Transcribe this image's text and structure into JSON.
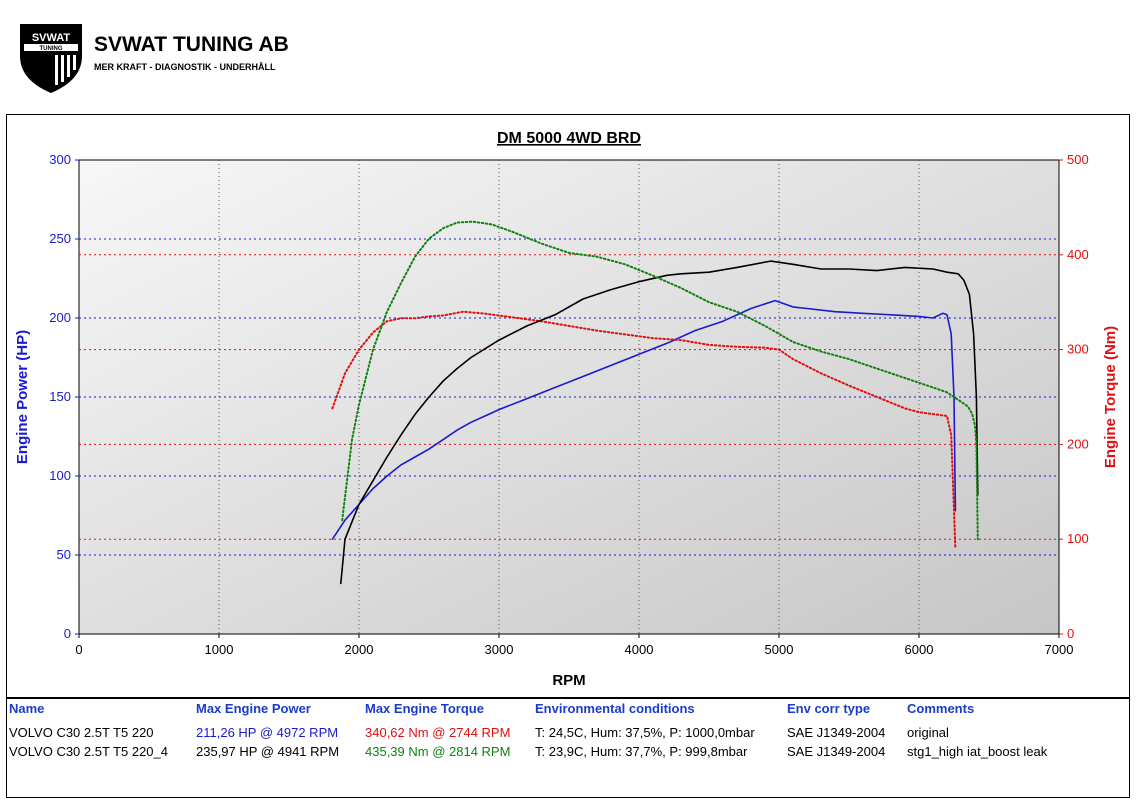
{
  "brand": {
    "name": "SVWAT TUNING AB",
    "tagline": "MER KRAFT - DIAGNOSTIK - UNDERHÅLL",
    "emblem_text": "SVWAT",
    "emblem_subtext": "TUNING"
  },
  "colors": {
    "power_1": "#1a1ad0",
    "torque_1": "#e01010",
    "power_2": "#000000",
    "torque_2": "#108010",
    "axis_left": "#1a1ad0",
    "axis_right": "#e01010"
  },
  "chart_data": {
    "type": "line",
    "title": "DM 5000 4WD BRD",
    "xlabel": "RPM",
    "ylabel": "Engine Power (HP)",
    "y2label": "Engine Torque (Nm)",
    "xlim": [
      0,
      7000
    ],
    "ylim": [
      0,
      300
    ],
    "y2lim": [
      0,
      500
    ],
    "xticks": [
      0,
      1000,
      2000,
      3000,
      4000,
      5000,
      6000,
      7000
    ],
    "yticks": [
      0,
      50,
      100,
      150,
      200,
      250,
      300
    ],
    "y2ticks": [
      0,
      100,
      200,
      300,
      400,
      500
    ],
    "grid": true,
    "series": [
      {
        "name": "VOLVO C30 2.5T T5 220",
        "quantity": "power",
        "axis": "left",
        "x": [
          1810,
          1900,
          2000,
          2100,
          2200,
          2300,
          2400,
          2500,
          2600,
          2700,
          2800,
          2900,
          3000,
          3200,
          3400,
          3600,
          3800,
          4000,
          4200,
          4400,
          4600,
          4800,
          4972,
          5100,
          5200,
          5400,
          5600,
          5800,
          6000,
          6100,
          6170,
          6200,
          6230,
          6250,
          6260
        ],
        "y": [
          60,
          72,
          82,
          92,
          100,
          107,
          112,
          117,
          123,
          129,
          134,
          138,
          142,
          149,
          156,
          163,
          170,
          177,
          184,
          192,
          198,
          206,
          211,
          207,
          206,
          204,
          203,
          202,
          201,
          200,
          203,
          202,
          190,
          150,
          78
        ]
      },
      {
        "name": "VOLVO C30 2.5T T5 220",
        "quantity": "torque",
        "axis": "right",
        "x": [
          1810,
          1900,
          2000,
          2100,
          2200,
          2300,
          2400,
          2500,
          2600,
          2744,
          2900,
          3100,
          3300,
          3500,
          3700,
          3900,
          4100,
          4300,
          4500,
          4700,
          4900,
          5000,
          5100,
          5300,
          5500,
          5700,
          5900,
          6000,
          6100,
          6200,
          6230,
          6250,
          6260
        ],
        "y": [
          238,
          275,
          300,
          318,
          330,
          333,
          333,
          335,
          336,
          340,
          338,
          334,
          330,
          325,
          320,
          316,
          312,
          310,
          305,
          303,
          302,
          300,
          290,
          275,
          262,
          250,
          238,
          234,
          232,
          230,
          210,
          130,
          90
        ]
      },
      {
        "name": "VOLVO C30 2.5T T5 220_4",
        "quantity": "power",
        "axis": "left",
        "x": [
          1870,
          1900,
          2000,
          2100,
          2200,
          2300,
          2400,
          2500,
          2600,
          2700,
          2800,
          3000,
          3200,
          3400,
          3600,
          3800,
          4000,
          4200,
          4300,
          4500,
          4700,
          4941,
          5100,
          5300,
          5500,
          5700,
          5900,
          6100,
          6200,
          6280,
          6320,
          6360,
          6390,
          6410,
          6420
        ],
        "y": [
          32,
          60,
          82,
          97,
          112,
          126,
          139,
          150,
          160,
          168,
          175,
          186,
          195,
          202,
          212,
          218,
          223,
          227,
          228,
          229,
          232,
          236,
          234,
          231,
          231,
          230,
          232,
          231,
          229,
          228,
          224,
          215,
          190,
          150,
          88
        ]
      },
      {
        "name": "VOLVO C30 2.5T T5 220_4",
        "quantity": "torque",
        "axis": "right",
        "x": [
          1880,
          1950,
          2000,
          2100,
          2200,
          2300,
          2400,
          2500,
          2600,
          2700,
          2814,
          2950,
          3100,
          3300,
          3500,
          3700,
          3900,
          4100,
          4300,
          4500,
          4700,
          4900,
          5100,
          5300,
          5500,
          5700,
          5900,
          6100,
          6200,
          6300,
          6350,
          6380,
          6400,
          6410,
          6420
        ],
        "y": [
          120,
          205,
          242,
          300,
          340,
          370,
          398,
          417,
          428,
          434,
          435,
          432,
          424,
          412,
          402,
          398,
          390,
          378,
          365,
          350,
          340,
          325,
          308,
          298,
          290,
          280,
          270,
          260,
          255,
          245,
          240,
          232,
          220,
          200,
          100
        ]
      }
    ]
  },
  "results": {
    "headers": {
      "name": "Name",
      "power": "Max Engine Power",
      "torque": "Max Engine Torque",
      "env": "Environmental conditions",
      "corr": "Env corr type",
      "comments": "Comments"
    },
    "rows": [
      {
        "name": "VOLVO C30 2.5T T5 220",
        "power": "211,26 HP @ 4972 RPM",
        "torque": "340,62 Nm @ 2744 RPM",
        "env": "T: 24,5C, Hum: 37,5%, P: 1000,0mbar",
        "corr": "SAE J1349-2004",
        "comments": "original"
      },
      {
        "name": "VOLVO C30 2.5T T5 220_4",
        "power": "235,97 HP @ 4941 RPM",
        "torque": "435,39 Nm @ 2814 RPM",
        "env": "T: 23,9C, Hum: 37,7%, P: 999,8mbar",
        "corr": "SAE J1349-2004",
        "comments": "stg1_high iat_boost leak"
      }
    ]
  }
}
